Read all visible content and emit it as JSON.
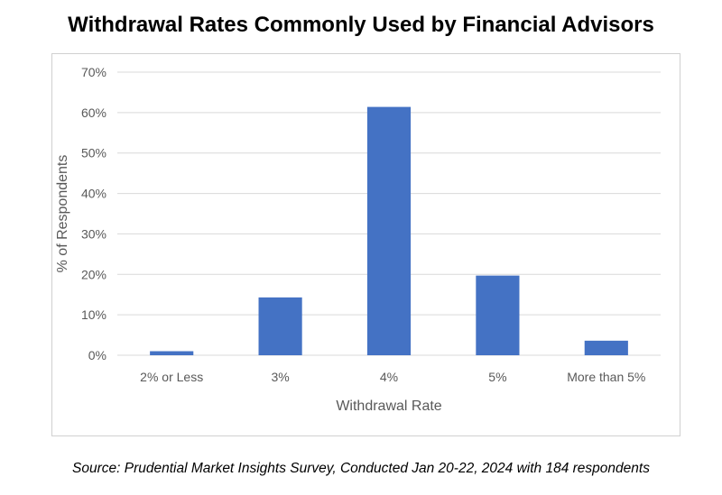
{
  "title": "Withdrawal Rates Commonly Used by Financial Advisors",
  "source": "Source: Prudential Market Insights Survey, Conducted Jan 20-22, 2024 with 184 respondents",
  "chart_data": {
    "type": "bar",
    "categories": [
      "2% or Less",
      "3%",
      "4%",
      "5%",
      "More than 5%"
    ],
    "values": [
      1,
      14.3,
      61.4,
      19.7,
      3.6
    ],
    "xlabel": "Withdrawal Rate",
    "ylabel": "% of Respondents",
    "ylim": [
      0,
      70
    ],
    "yticks": [
      0,
      10,
      20,
      30,
      40,
      50,
      60,
      70
    ],
    "ytick_labels": [
      "0%",
      "10%",
      "20%",
      "30%",
      "40%",
      "50%",
      "60%",
      "70%"
    ],
    "grid": true,
    "legend": "none",
    "bar_color": "#4472c4",
    "grid_color": "#d9d9d9"
  }
}
